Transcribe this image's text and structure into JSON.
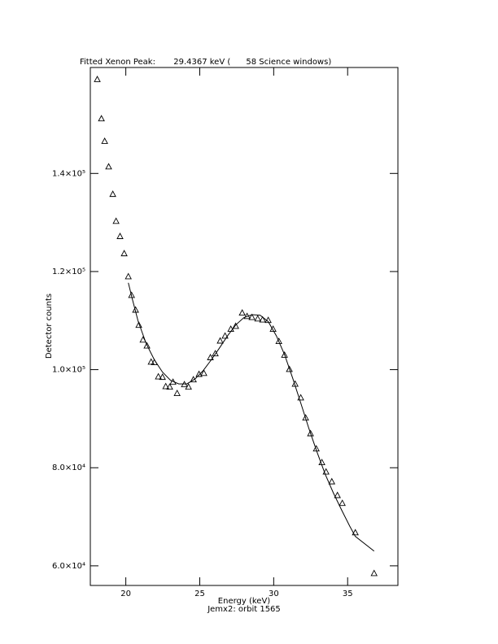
{
  "chart_data": {
    "type": "scatter",
    "title": "Fitted Xenon Peak:       29.4367 keV (      58 Science windows)",
    "x_label": "Energy (keV)",
    "subtitle": "Jemx2: orbit 1565",
    "y_label": "Detector counts",
    "xlim": [
      17.6,
      38.4
    ],
    "ylim": [
      56000,
      161600
    ],
    "xticks": [
      20,
      25,
      30,
      35
    ],
    "yticks": [
      {
        "value": 60000,
        "label": "6.0×10⁴"
      },
      {
        "value": 80000,
        "label": "8.0×10⁴"
      },
      {
        "value": 100000,
        "label": "1.0×10⁵"
      },
      {
        "value": 120000,
        "label": "1.2×10⁵"
      },
      {
        "value": 140000,
        "label": "1.4×10⁵"
      }
    ],
    "series": [
      {
        "marker": "triangle",
        "color": "#000000",
        "x": [
          18.07,
          18.35,
          18.57,
          18.84,
          19.12,
          19.34,
          19.61,
          19.89,
          20.17,
          20.39,
          20.66,
          20.88,
          21.16,
          21.43,
          21.71,
          21.93,
          22.2,
          22.48,
          22.7,
          22.97,
          23.19,
          23.47,
          23.96,
          24.24,
          24.57,
          24.95,
          25.28,
          25.72,
          26.05,
          26.38,
          26.71,
          27.1,
          27.43,
          27.87,
          28.2,
          28.53,
          28.92,
          29.25,
          29.63,
          29.96,
          30.35,
          30.73,
          31.06,
          31.45,
          31.83,
          32.16,
          32.49,
          32.88,
          33.26,
          33.54,
          33.93,
          34.31,
          34.64,
          35.52,
          36.79
        ],
        "values": [
          159200,
          151200,
          146600,
          141400,
          135800,
          130300,
          127200,
          123700,
          119000,
          115200,
          112200,
          109100,
          106100,
          104900,
          101600,
          101500,
          98600,
          98500,
          96600,
          96500,
          97500,
          95200,
          97000,
          96500,
          98000,
          99100,
          99300,
          102500,
          103300,
          105900,
          106900,
          108300,
          108900,
          111600,
          110900,
          110700,
          110400,
          110200,
          110100,
          108300,
          105800,
          103000,
          100100,
          97100,
          94300,
          90200,
          87000,
          83900,
          81100,
          79200,
          77200,
          74400,
          72800,
          66800,
          58500
        ]
      },
      {
        "marker": "line",
        "color": "#000000",
        "x": [
          20.17,
          20.44,
          20.83,
          21.38,
          21.93,
          22.48,
          23.03,
          23.58,
          24.13,
          24.68,
          25.23,
          25.78,
          26.33,
          26.88,
          27.43,
          27.98,
          28.53,
          29.08,
          29.63,
          30.18,
          30.73,
          31.28,
          31.83,
          32.38,
          32.93,
          33.48,
          34.03,
          34.59,
          35.14,
          35.52,
          36.79
        ],
        "values": [
          117700,
          114400,
          109900,
          105300,
          102000,
          99500,
          97800,
          97100,
          97100,
          98100,
          99800,
          102000,
          104400,
          106900,
          109100,
          110600,
          111200,
          111100,
          109800,
          106900,
          103100,
          98300,
          93200,
          88000,
          83200,
          78700,
          74900,
          71400,
          68100,
          66000,
          63000
        ]
      }
    ]
  }
}
